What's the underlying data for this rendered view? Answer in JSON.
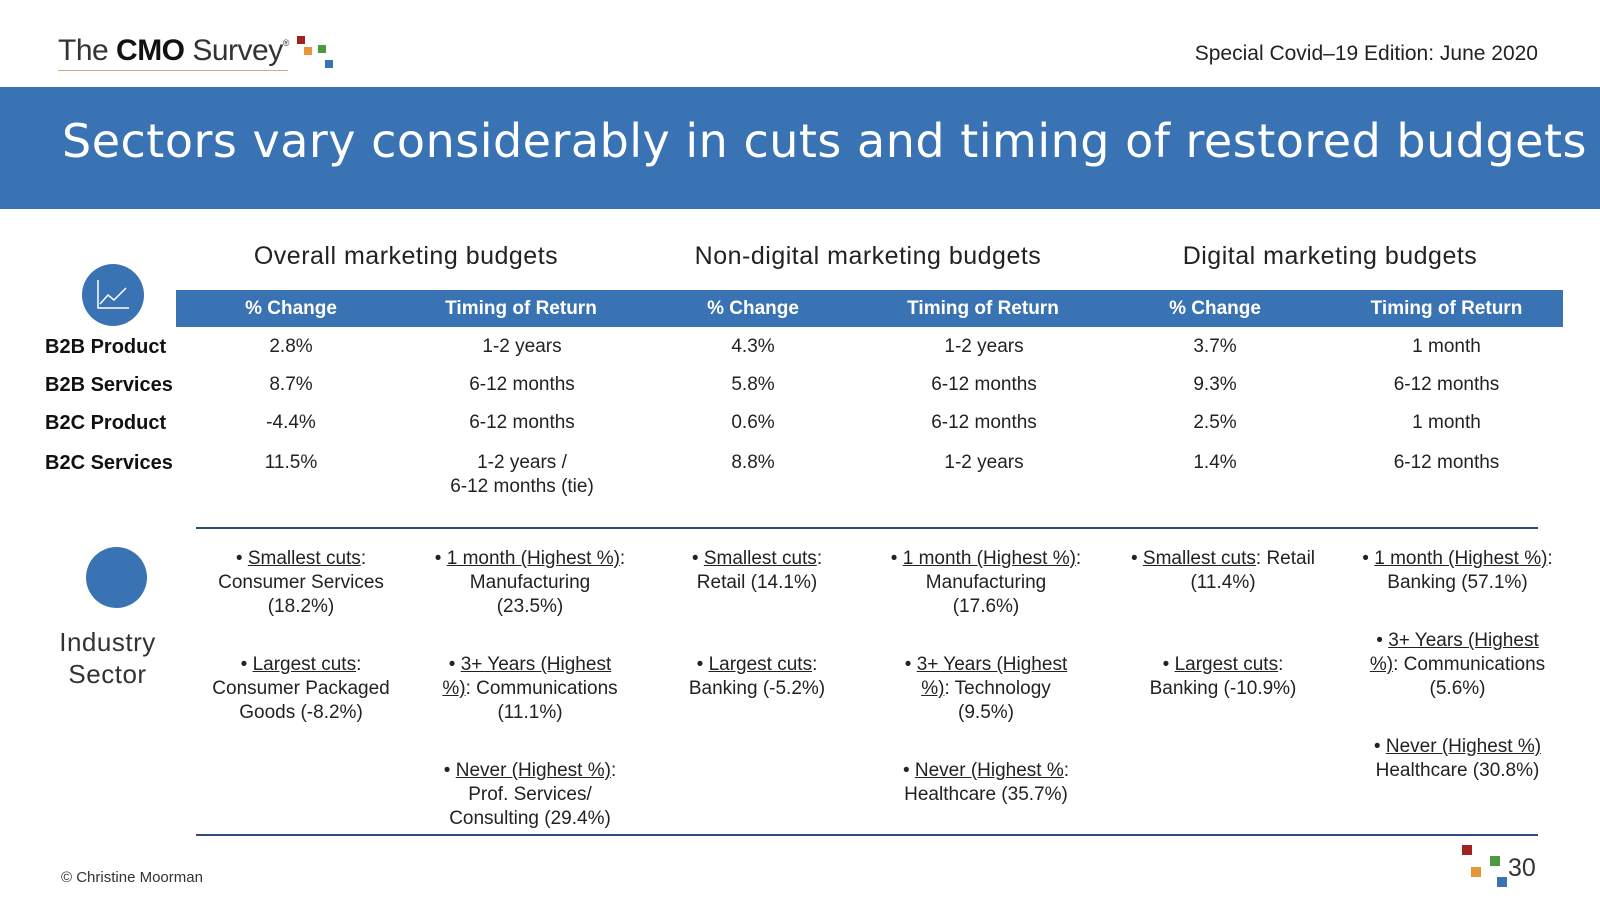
{
  "logo": {
    "pre": "The ",
    "bold": "CMO",
    "post": " Survey",
    "reg": "®"
  },
  "edition": "Special Covid–19 Edition: June 2020",
  "title": "Sectors vary considerably in cuts and timing of restored budgets",
  "groups": [
    "Overall marketing budgets",
    "Non-digital marketing budgets",
    "Digital marketing budgets"
  ],
  "headers": [
    "% Change",
    "Timing of Return",
    "% Change",
    "Timing of Return",
    "% Change",
    "Timing of Return"
  ],
  "rows": [
    {
      "label": "B2B Product",
      "cells": [
        "2.8%",
        "1-2 years",
        "4.3%",
        "1-2 years",
        "3.7%",
        "1 month"
      ]
    },
    {
      "label": "B2B Services",
      "cells": [
        "8.7%",
        "6-12 months",
        "5.8%",
        "6-12 months",
        "9.3%",
        "6-12 months"
      ]
    },
    {
      "label": "B2C Product",
      "cells": [
        "-4.4%",
        "6-12 months",
        "0.6%",
        "6-12 months",
        "2.5%",
        "1 month"
      ]
    },
    {
      "label": "B2C Services",
      "cells": [
        "11.5%",
        "1-2 years /",
        "8.8%",
        "1-2 years",
        "1.4%",
        "6-12 months"
      ],
      "extra": "6-12 months (tie)"
    }
  ],
  "industry": {
    "label_line1": "Industry",
    "label_line2": "Sector",
    "c1_smallest_u": "Smallest cuts",
    "c1_smallest_t": ":",
    "c1_smallest_l2": "Consumer  Services",
    "c1_smallest_l3": "(18.2%)",
    "c1_largest_u": "Largest cuts",
    "c1_largest_t": ":",
    "c1_largest_l2": "Consumer Packaged",
    "c1_largest_l3": "Goods (-8.2%)",
    "c2_month_u": "1 month (Highest %)",
    "c2_month_t": ":",
    "c2_month_l2": "Manufacturing",
    "c2_month_l3": "(23.5%)",
    "c2_years_u": "3+ Years (Highest",
    "c2_years_u2": "%)",
    "c2_years_t": ": Communications",
    "c2_years_l3": "(11.1%)",
    "c2_never_u": "Never (Highest %)",
    "c2_never_t": ":",
    "c2_never_l2": "Prof. Services/",
    "c2_never_l3": "Consulting (29.4%)",
    "c3_smallest_u": "Smallest cuts",
    "c3_smallest_t": ":",
    "c3_smallest_l2": "Retail (14.1%)",
    "c3_largest_u": "Largest cuts",
    "c3_largest_t": ":",
    "c3_largest_l2": "Banking (-5.2%)",
    "c4_month_u": "1 month (Highest %)",
    "c4_month_t": ":",
    "c4_month_l2": "Manufacturing",
    "c4_month_l3": "(17.6%)",
    "c4_years_u": "3+ Years (Highest",
    "c4_years_u2": "%)",
    "c4_years_t": ": Technology",
    "c4_years_l3": "(9.5%)",
    "c4_never_u": "Never (Highest %",
    "c4_never_t": ":",
    "c4_never_l2": "Healthcare (35.7%)",
    "c5_smallest_u": "Smallest cuts",
    "c5_smallest_t": ": Retail",
    "c5_smallest_l2": "(11.4%)",
    "c5_largest_u": "Largest cuts",
    "c5_largest_t": ":",
    "c5_largest_l2": "Banking (-10.9%)",
    "c6_month_u": "1 month (Highest %)",
    "c6_month_t": ":",
    "c6_month_l2": "Banking (57.1%)",
    "c6_years_u": "3+ Years (Highest",
    "c6_years_u2": "%)",
    "c6_years_t": ": Communications",
    "c6_years_l3": "(5.6%)",
    "c6_never_u": "Never (Highest %)",
    "c6_never_l2": "Healthcare (30.8%)"
  },
  "footer": {
    "copyright": "© Christine Moorman",
    "page": "30"
  },
  "colors": {
    "brand_blue": "#3a73b4",
    "rule": "#2f4d7a",
    "sq_red": "#a0231f",
    "sq_orange": "#e8943a",
    "sq_green": "#4c9a3f",
    "sq_blue": "#3a73b4"
  }
}
